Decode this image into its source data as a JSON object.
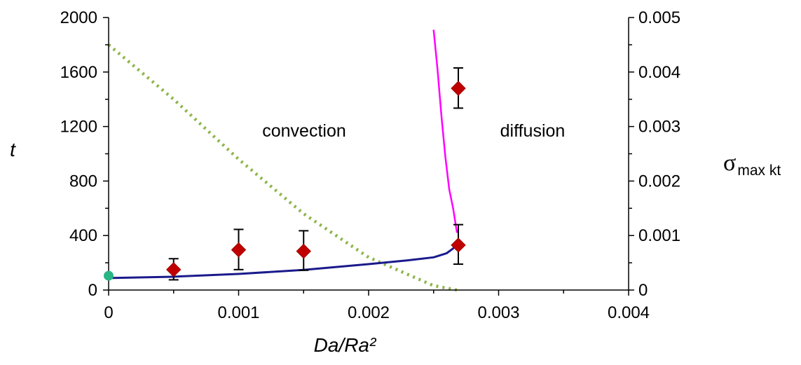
{
  "chart_data": {
    "type": "scatter",
    "xlabel": "Da/Ra²",
    "ylabel": "t",
    "y2label_symbol": "σ",
    "y2label_sub": "max kt",
    "x_ticks": [
      "0",
      "0.001",
      "0.002",
      "0.003",
      "0.004"
    ],
    "y_ticks": [
      "0",
      "400",
      "800",
      "1200",
      "1600",
      "2000"
    ],
    "y2_ticks": [
      "0",
      "0.001",
      "0.002",
      "0.003",
      "0.004",
      "0.005"
    ],
    "xlim": [
      0,
      0.004
    ],
    "ylim": [
      0,
      2000
    ],
    "y2lim": [
      0,
      0.005
    ],
    "grid": false,
    "annotations": {
      "left": "convection",
      "right": "diffusion"
    },
    "colors": {
      "measured": "#c00000",
      "blue_curve": "#1a1a8c",
      "magenta_curve": "#ff00ff",
      "green_dotted": "#8db548",
      "teal_point": "#2ab585"
    },
    "measured": {
      "x": [
        0.0005,
        0.001,
        0.0015,
        0.00269,
        0.00269
      ],
      "y": [
        150,
        295,
        285,
        330,
        1480
      ],
      "err_low": [
        75,
        145,
        140,
        140,
        145
      ],
      "err_high": [
        80,
        150,
        150,
        150,
        150
      ]
    },
    "teal_point": {
      "x": 0,
      "y": 105
    },
    "blue_curve": {
      "x": [
        0,
        0.0005,
        0.001,
        0.0015,
        0.002,
        0.0023,
        0.0025,
        0.0026,
        0.00265,
        0.0027
      ],
      "y": [
        88,
        98,
        118,
        148,
        190,
        218,
        240,
        270,
        305,
        360
      ]
    },
    "magenta_curve": {
      "x": [
        0.0025,
        0.00253,
        0.00256,
        0.00259,
        0.00262,
        0.00265,
        0.00268
      ],
      "y": [
        1910,
        1620,
        1280,
        980,
        740,
        600,
        420
      ]
    },
    "green_dotted": {
      "x": [
        0,
        0.0005,
        0.001,
        0.0015,
        0.002,
        0.0025,
        0.00268
      ],
      "y2": [
        0.0045,
        0.0035,
        0.0024,
        0.0014,
        0.0006,
        8e-05,
        0
      ]
    }
  }
}
